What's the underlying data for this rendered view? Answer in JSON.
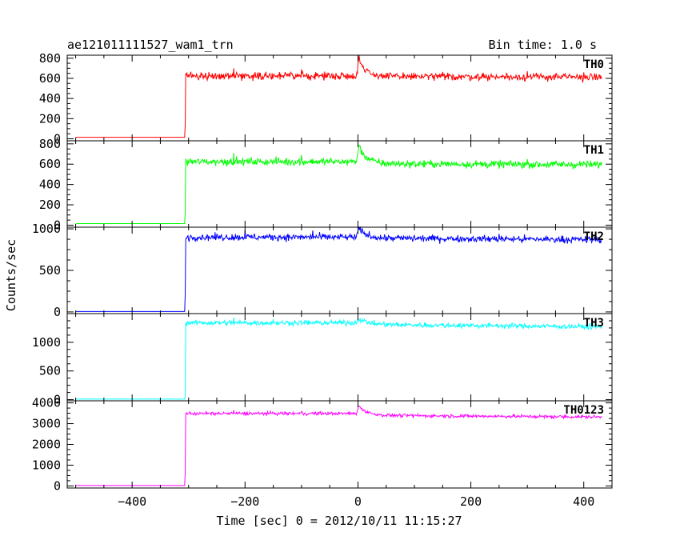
{
  "header": {
    "title": "ae121011111527_wam1_trn",
    "bin_time": "Bin time: 1.0 s"
  },
  "chart_data": {
    "type": "line",
    "title": "ae121011111527_wam1_trn",
    "xlabel": "Time [sec] 0 = 2012/10/11 11:15:27",
    "ylabel": "Counts/sec",
    "xlim": [
      -515,
      450
    ],
    "x_ticks": [
      -400,
      -200,
      0,
      200,
      400
    ],
    "x_tick_labels": [
      "−400",
      "−200",
      "0",
      "200",
      "400"
    ],
    "grid": false,
    "step_time": -306,
    "data_end": 432,
    "panels": [
      {
        "name": "TH0",
        "color": "#ff0000",
        "ylim": [
          -20,
          830
        ],
        "y_ticks": [
          0,
          200,
          400,
          600,
          800
        ],
        "y_tick_labels": [
          "0",
          "200",
          "400",
          "600",
          "800"
        ],
        "pre_level": 15,
        "spike_level": 140,
        "level": 625,
        "noise": 25,
        "burst_peak": 820,
        "decay_level": 620,
        "end_level": 612,
        "wiggles": [
          [
            -220,
            700
          ],
          [
            -100,
            690
          ],
          [
            80,
            660
          ],
          [
            150,
            665
          ],
          [
            300,
            672
          ],
          [
            400,
            660
          ]
        ]
      },
      {
        "name": "TH1",
        "color": "#00ff00",
        "ylim": [
          -20,
          830
        ],
        "y_ticks": [
          0,
          200,
          400,
          600,
          800
        ],
        "y_tick_labels": [
          "0",
          "200",
          "400",
          "600",
          "800"
        ],
        "pre_level": 15,
        "spike_level": 120,
        "level": 625,
        "noise": 25,
        "burst_peak": 800,
        "decay_level": 605,
        "end_level": 595,
        "wiggles": [
          [
            -220,
            710
          ],
          [
            -100,
            690
          ],
          [
            120,
            610
          ],
          [
            300,
            650
          ],
          [
            400,
            630
          ]
        ]
      },
      {
        "name": "TH2",
        "color": "#0000ff",
        "ylim": [
          -20,
          1020
        ],
        "y_ticks": [
          0,
          500,
          1000
        ],
        "y_tick_labels": [
          "0",
          "500",
          "1000"
        ],
        "pre_level": 5,
        "spike_level": 200,
        "level": 900,
        "noise": 28,
        "burst_peak": 1020,
        "decay_level": 890,
        "end_level": 870,
        "wiggles": [
          [
            -200,
            990
          ],
          [
            -80,
            980
          ],
          [
            100,
            920
          ],
          [
            250,
            940
          ]
        ]
      },
      {
        "name": "TH3",
        "color": "#00ffff",
        "ylim": [
          -20,
          1500
        ],
        "y_ticks": [
          0,
          500,
          1000
        ],
        "y_tick_labels": [
          "0",
          "500",
          "1000"
        ],
        "pre_level": 10,
        "spike_level": 60,
        "level": 1340,
        "noise": 30,
        "burst_peak": 1420,
        "decay_level": 1310,
        "end_level": 1270,
        "wiggles": [
          [
            -220,
            1430
          ],
          [
            -150,
            1400
          ],
          [
            0,
            1420
          ],
          [
            200,
            1330
          ],
          [
            420,
            1300
          ]
        ]
      },
      {
        "name": "TH0123",
        "color": "#ff00ff",
        "ylim": [
          -100,
          4100
        ],
        "y_ticks": [
          0,
          1000,
          2000,
          3000,
          4000
        ],
        "y_tick_labels": [
          "0",
          "1000",
          "2000",
          "3000",
          "4000"
        ],
        "pre_level": 20,
        "spike_level": 600,
        "level": 3490,
        "noise": 55,
        "burst_peak": 3900,
        "decay_level": 3400,
        "end_level": 3320,
        "wiggles": [
          [
            -220,
            3650
          ],
          [
            -100,
            3580
          ],
          [
            100,
            3420
          ],
          [
            300,
            3380
          ]
        ]
      }
    ]
  }
}
